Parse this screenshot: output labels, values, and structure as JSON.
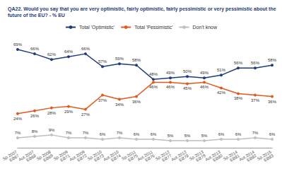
{
  "chart_data": {
    "type": "line",
    "title": "QA22. Would you say that you are very optimistic, fairly optimistic, fairly pessimistic or very pessimistic about the future of the EU? - % EU",
    "categories": [
      "Sp.2007 EB67",
      "Aut.2007 EB68",
      "Sp.2008 EB69",
      "Sp.2009 EB71",
      "Aut.2009 EB72",
      "Sp.2010 EB73",
      "Aut.2010 EB74",
      "Sp.2011 EB75",
      "Aut.2011 EB76",
      "Sp.2012 EB77",
      "Aut.2012 EB78",
      "Sp.2013 EB79",
      "Aut.2013 EB80",
      "Sp.2014 EB81",
      "Aut.2014 EB82",
      "Sp.2015 EB83"
    ],
    "series": [
      {
        "name": "Total 'Optimistic'",
        "color": "#1f3d7a",
        "marker": "circle",
        "values": [
          69,
          66,
          62,
          64,
          66,
          57,
          59,
          58,
          48,
          49,
          50,
          49,
          51,
          56,
          56,
          58
        ],
        "value_labels": [
          "69%",
          "66%",
          "62%",
          "64%",
          "66%",
          "57%",
          "59%",
          "58%",
          "48%",
          "49%",
          "50%",
          "49%",
          "51%",
          "56%",
          "56%",
          "58%"
        ]
      },
      {
        "name": "Total 'Pessimistic'",
        "color": "#e0591e",
        "marker": "circle",
        "values": [
          24,
          26,
          28,
          29,
          27,
          37,
          34,
          36,
          46,
          46,
          45,
          46,
          42,
          38,
          37,
          36
        ],
        "value_labels": [
          "24%",
          "26%",
          "28%",
          "29%",
          "27%",
          "37%",
          "34%",
          "36%",
          "46%",
          "46%",
          "45%",
          "46%",
          "42%",
          "38%",
          "37%",
          "36%"
        ]
      },
      {
        "name": "Don't know",
        "color": "#bfbfbf",
        "marker": "circle",
        "values": [
          7,
          8,
          9,
          7,
          7,
          6,
          7,
          6,
          6,
          5,
          5,
          5,
          6,
          6,
          7,
          6
        ],
        "value_labels": [
          "7%",
          "8%",
          "9%",
          "7%",
          "7%",
          "6%",
          "7%",
          "6%",
          "6%",
          "5%",
          "5%",
          "5%",
          "6%",
          "6%",
          "7%",
          "6%"
        ]
      }
    ],
    "ylim": [
      0,
      75
    ],
    "grid": false,
    "legend": "top",
    "data_labels": true,
    "tick_labels": "x"
  }
}
